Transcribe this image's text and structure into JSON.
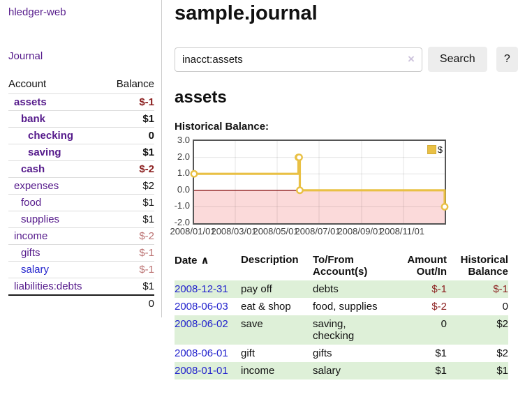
{
  "app": {
    "brand": "hledger-web",
    "nav_journal": "Journal"
  },
  "colors": {
    "link_purple": "#551a8b",
    "link_blue": "#2323cd",
    "negative": "#8b1f1f",
    "negative_muted": "#bb7272",
    "row_stripe_green": "#def0d8",
    "series_gold": "#e9c044",
    "negative_region_pink": "#fbdada",
    "zero_line_red": "#8b1a1a"
  },
  "sidebar": {
    "table_headers": {
      "account": "Account",
      "balance": "Balance"
    },
    "accounts": [
      {
        "name": "assets",
        "indent": 0,
        "bold": true,
        "balance": "$-1",
        "balance_class": "neg",
        "link_class": "purple"
      },
      {
        "name": "bank",
        "indent": 1,
        "bold": true,
        "balance": "$1",
        "balance_class": "amt",
        "link_class": "purple"
      },
      {
        "name": "checking",
        "indent": 2,
        "bold": true,
        "balance": "0",
        "balance_class": "amt",
        "link_class": "purple"
      },
      {
        "name": "saving",
        "indent": 2,
        "bold": true,
        "balance": "$1",
        "balance_class": "amt",
        "link_class": "purple"
      },
      {
        "name": "cash",
        "indent": 1,
        "bold": true,
        "balance": "$-2",
        "balance_class": "neg",
        "link_class": "purple"
      },
      {
        "name": "expenses",
        "indent": 0,
        "bold": false,
        "balance": "$2",
        "balance_class": "amt",
        "link_class": "purple"
      },
      {
        "name": "food",
        "indent": 1,
        "bold": false,
        "balance": "$1",
        "balance_class": "amt",
        "link_class": "purple"
      },
      {
        "name": "supplies",
        "indent": 1,
        "bold": false,
        "balance": "$1",
        "balance_class": "amt",
        "link_class": "purple"
      },
      {
        "name": "income",
        "indent": 0,
        "bold": false,
        "balance": "$-2",
        "balance_class": "neg-light",
        "link_class": "purple"
      },
      {
        "name": "gifts",
        "indent": 1,
        "bold": false,
        "balance": "$-1",
        "balance_class": "neg-light",
        "link_class": "purple"
      },
      {
        "name": "salary",
        "indent": 1,
        "bold": false,
        "balance": "$-1",
        "balance_class": "neg-light",
        "link_class": "blue"
      },
      {
        "name": "liabilities:debts",
        "indent": 0,
        "bold": false,
        "balance": "$1",
        "balance_class": "amt",
        "link_class": "purple"
      }
    ],
    "total": "0"
  },
  "header": {
    "title": "sample.journal"
  },
  "search": {
    "value": "inacct:assets",
    "clear_icon": "×",
    "button_label": "Search",
    "help_label": "?"
  },
  "account_page": {
    "heading": "assets",
    "chart_label": "Historical Balance:"
  },
  "chart_data": {
    "type": "line",
    "step": true,
    "title": "Historical Balance",
    "series": [
      {
        "name": "$",
        "color": "#e9c044",
        "points": [
          {
            "x": "2008-01-01",
            "y": 1
          },
          {
            "x": "2008-06-01",
            "y": 2
          },
          {
            "x": "2008-06-02",
            "y": 2
          },
          {
            "x": "2008-06-03",
            "y": 0
          },
          {
            "x": "2008-12-31",
            "y": -1
          }
        ]
      }
    ],
    "xlim": [
      "2008-01-01",
      "2008-12-31"
    ],
    "ylim": [
      -2,
      3
    ],
    "x_ticks": [
      {
        "x": "2008-01-01",
        "label": "2008/01/01"
      },
      {
        "x": "2008-03-01",
        "label": "2008/03/01"
      },
      {
        "x": "2008-05-01",
        "label": "2008/05/01"
      },
      {
        "x": "2008-07-01",
        "label": "2008/07/01"
      },
      {
        "x": "2008-09-01",
        "label": "2008/09/01"
      },
      {
        "x": "2008-11-01",
        "label": "2008/11/01"
      }
    ],
    "y_ticks": [
      {
        "y": 3,
        "label": "3.0"
      },
      {
        "y": 2,
        "label": "2.0"
      },
      {
        "y": 1,
        "label": "1.0"
      },
      {
        "y": 0,
        "label": "0.0"
      },
      {
        "y": -1,
        "label": "-1.0"
      },
      {
        "y": -2,
        "label": "-2.0"
      }
    ],
    "grid": true,
    "legend_position": "top-right",
    "negative_region_fill": "#fbdada",
    "zero_line_color": "#8b1a1a"
  },
  "register": {
    "headers": {
      "date": "Date",
      "sort_icon": "∧",
      "description": "Description",
      "accounts": "To/From Account(s)",
      "amount": "Amount Out/In",
      "balance": "Historical Balance"
    },
    "rows": [
      {
        "date": "2008-12-31",
        "description": "pay off",
        "accounts": "debts",
        "amount": "$-1",
        "amount_class": "neg",
        "balance": "$-1",
        "balance_class": "neg",
        "shaded": true
      },
      {
        "date": "2008-06-03",
        "description": "eat & shop",
        "accounts": "food, supplies",
        "amount": "$-2",
        "amount_class": "neg",
        "balance": "0",
        "balance_class": "amt",
        "shaded": false
      },
      {
        "date": "2008-06-02",
        "description": "save",
        "accounts": "saving,\nchecking",
        "amount": "0",
        "amount_class": "amt",
        "balance": "$2",
        "balance_class": "amt",
        "shaded": true
      },
      {
        "date": "2008-06-01",
        "description": "gift",
        "accounts": "gifts",
        "amount": "$1",
        "amount_class": "amt",
        "balance": "$2",
        "balance_class": "amt",
        "shaded": false
      },
      {
        "date": "2008-01-01",
        "description": "income",
        "accounts": "salary",
        "amount": "$1",
        "amount_class": "amt",
        "balance": "$1",
        "balance_class": "amt",
        "shaded": true
      }
    ]
  }
}
